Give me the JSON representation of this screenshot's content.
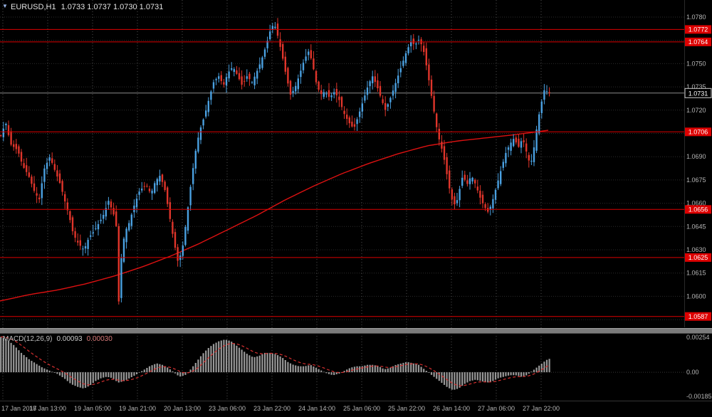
{
  "header": {
    "symbol_timeframe": "EURUSD,H1",
    "ohlc_quotes": "1.0733 1.0737 1.0730 1.0731"
  },
  "indicator": {
    "name": "MACD(12,26,9)",
    "value_main": "0.00093",
    "value_signal": "0.00030"
  },
  "colors": {
    "background": "#000000",
    "bull": "#4aa0e0",
    "bear": "#e0352b",
    "level_line": "#dd0000",
    "ma_line": "#dd1111",
    "bid_line": "#8a8a8a",
    "macd_hist": "#989898",
    "macd_signal": "#d83030",
    "axis_text": "#b6b6b6",
    "grid_v": "#4f4f4f",
    "grid_h": "#2c2c2c",
    "separator": "#7b7b7b"
  },
  "chart_data": {
    "type": "candlestick",
    "symbol": "EURUSD",
    "timeframe": "H1",
    "ohlc_display": {
      "open": "1.0733",
      "high": "1.0737",
      "low": "1.0730",
      "close": "1.0731"
    },
    "price_axis": {
      "view_range": [
        1.058,
        1.0791
      ],
      "grid_start": 1.0585,
      "grid_step": 0.0015,
      "tick_labels": [
        "1.0780",
        "1.0750",
        "1.0735",
        "1.0720",
        "1.0690",
        "1.0675",
        "1.0660",
        "1.0645",
        "1.0630",
        "1.0615",
        "1.0600"
      ],
      "current_price": "1.0731",
      "level_lines": [
        "1.0772",
        "1.0764",
        "1.0706",
        "1.0656",
        "1.0625",
        "1.0587"
      ]
    },
    "time_axis": {
      "labels": [
        "17 Jan 2017",
        "18 Jan 13:00",
        "19 Jan 05:00",
        "19 Jan 21:00",
        "20 Jan 13:00",
        "23 Jan 06:00",
        "23 Jan 22:00",
        "24 Jan 14:00",
        "25 Jan 06:00",
        "25 Jan 22:00",
        "26 Jan 14:00",
        "27 Jan 06:00",
        "27 Jan 22:00"
      ]
    },
    "price_path": [
      [
        0,
        1.0702
      ],
      [
        8,
        1.0712
      ],
      [
        15,
        1.0698
      ],
      [
        25,
        1.0694
      ],
      [
        32,
        1.0684
      ],
      [
        40,
        1.0678
      ],
      [
        48,
        1.0668
      ],
      [
        55,
        1.0662
      ],
      [
        62,
        1.0682
      ],
      [
        70,
        1.069
      ],
      [
        78,
        1.068
      ],
      [
        85,
        1.0672
      ],
      [
        90,
        1.0663
      ],
      [
        97,
        1.0652
      ],
      [
        103,
        1.064
      ],
      [
        110,
        1.0634
      ],
      [
        118,
        1.063
      ],
      [
        125,
        1.0638
      ],
      [
        132,
        1.0642
      ],
      [
        140,
        1.0648
      ],
      [
        147,
        1.0654
      ],
      [
        152,
        1.0662
      ],
      [
        158,
        1.0655
      ],
      [
        163,
        1.0648
      ],
      [
        167,
        1.0594
      ],
      [
        171,
        1.063
      ],
      [
        176,
        1.0642
      ],
      [
        182,
        1.0648
      ],
      [
        188,
        1.0658
      ],
      [
        196,
        1.0668
      ],
      [
        205,
        1.0672
      ],
      [
        212,
        1.0666
      ],
      [
        218,
        1.0674
      ],
      [
        225,
        1.0678
      ],
      [
        232,
        1.0668
      ],
      [
        238,
        1.0652
      ],
      [
        244,
        1.0636
      ],
      [
        250,
        1.0622
      ],
      [
        256,
        1.063
      ],
      [
        262,
        1.065
      ],
      [
        268,
        1.0672
      ],
      [
        274,
        1.0692
      ],
      [
        280,
        1.0706
      ],
      [
        287,
        1.0716
      ],
      [
        294,
        1.0728
      ],
      [
        300,
        1.0738
      ],
      [
        307,
        1.0742
      ],
      [
        314,
        1.0736
      ],
      [
        320,
        1.0744
      ],
      [
        327,
        1.0748
      ],
      [
        334,
        1.0742
      ],
      [
        340,
        1.0736
      ],
      [
        347,
        1.0742
      ],
      [
        354,
        1.0738
      ],
      [
        360,
        1.0744
      ],
      [
        367,
        1.0752
      ],
      [
        374,
        1.0762
      ],
      [
        380,
        1.0772
      ],
      [
        385,
        1.0776
      ],
      [
        390,
        1.0768
      ],
      [
        396,
        1.0756
      ],
      [
        402,
        1.0742
      ],
      [
        408,
        1.073
      ],
      [
        414,
        1.0734
      ],
      [
        420,
        1.0742
      ],
      [
        427,
        1.0752
      ],
      [
        433,
        1.0758
      ],
      [
        438,
        1.0752
      ],
      [
        444,
        1.0738
      ],
      [
        450,
        1.073
      ],
      [
        456,
        1.0732
      ],
      [
        463,
        1.0728
      ],
      [
        470,
        1.0732
      ],
      [
        477,
        1.0726
      ],
      [
        483,
        1.0718
      ],
      [
        490,
        1.0712
      ],
      [
        497,
        1.0708
      ],
      [
        503,
        1.0716
      ],
      [
        510,
        1.0726
      ],
      [
        517,
        1.0736
      ],
      [
        523,
        1.0742
      ],
      [
        529,
        1.0736
      ],
      [
        535,
        1.0728
      ],
      [
        541,
        1.072
      ],
      [
        547,
        1.0726
      ],
      [
        553,
        1.0734
      ],
      [
        559,
        1.0742
      ],
      [
        565,
        1.075
      ],
      [
        571,
        1.0758
      ],
      [
        577,
        1.0764
      ],
      [
        583,
        1.0762
      ],
      [
        589,
        1.0766
      ],
      [
        595,
        1.0758
      ],
      [
        600,
        1.0746
      ],
      [
        605,
        1.0732
      ],
      [
        610,
        1.0718
      ],
      [
        615,
        1.0704
      ],
      [
        620,
        1.0696
      ],
      [
        625,
        1.0686
      ],
      [
        630,
        1.0672
      ],
      [
        635,
        1.0662
      ],
      [
        640,
        1.0658
      ],
      [
        645,
        1.0668
      ],
      [
        650,
        1.0678
      ],
      [
        656,
        1.0672
      ],
      [
        662,
        1.0678
      ],
      [
        668,
        1.0672
      ],
      [
        674,
        1.0664
      ],
      [
        680,
        1.0658
      ],
      [
        686,
        1.0654
      ],
      [
        692,
        1.0662
      ],
      [
        698,
        1.0672
      ],
      [
        704,
        1.0682
      ],
      [
        710,
        1.0692
      ],
      [
        716,
        1.0698
      ],
      [
        722,
        1.0702
      ],
      [
        728,
        1.0696
      ],
      [
        734,
        1.0702
      ],
      [
        740,
        1.0692
      ],
      [
        745,
        1.0684
      ],
      [
        750,
        1.0696
      ],
      [
        755,
        1.0712
      ],
      [
        760,
        1.0724
      ],
      [
        765,
        1.0734
      ],
      [
        770,
        1.0731
      ]
    ],
    "ma_line": [
      [
        0,
        1.0597
      ],
      [
        40,
        1.0601
      ],
      [
        80,
        1.0604
      ],
      [
        120,
        1.0608
      ],
      [
        160,
        1.0613
      ],
      [
        200,
        1.0619
      ],
      [
        240,
        1.0626
      ],
      [
        280,
        1.0634
      ],
      [
        320,
        1.0643
      ],
      [
        360,
        1.0652
      ],
      [
        400,
        1.0662
      ],
      [
        440,
        1.0671
      ],
      [
        480,
        1.0679
      ],
      [
        520,
        1.0686
      ],
      [
        560,
        1.0692
      ],
      [
        600,
        1.0697
      ],
      [
        640,
        1.07
      ],
      [
        680,
        1.0702
      ],
      [
        720,
        1.0704
      ],
      [
        770,
        1.0707
      ]
    ],
    "macd": {
      "params": "12,26,9",
      "main_value": "0.00093",
      "signal_value": "0.00030",
      "view_range": [
        -0.00186,
        0.00254
      ],
      "axis_labels": [
        "0.00254",
        "0.00",
        "-0.00185"
      ],
      "histogram": [
        [
          0,
          0.0024
        ],
        [
          10,
          0.0022
        ],
        [
          20,
          0.0018
        ],
        [
          30,
          0.0013
        ],
        [
          40,
          0.0009
        ],
        [
          50,
          0.0006
        ],
        [
          60,
          0.0003
        ],
        [
          70,
          0.0001
        ],
        [
          80,
          -0.0001
        ],
        [
          90,
          -0.0004
        ],
        [
          100,
          -0.0008
        ],
        [
          110,
          -0.001
        ],
        [
          118,
          -0.0011
        ],
        [
          126,
          -0.0009
        ],
        [
          134,
          -0.0006
        ],
        [
          142,
          -0.0004
        ],
        [
          150,
          -0.0003
        ],
        [
          158,
          -0.0004
        ],
        [
          166,
          -0.0007
        ],
        [
          174,
          -0.0006
        ],
        [
          182,
          -0.0004
        ],
        [
          190,
          -0.0002
        ],
        [
          200,
          0.0001
        ],
        [
          210,
          0.0004
        ],
        [
          220,
          0.0006
        ],
        [
          228,
          0.0005
        ],
        [
          236,
          0.0003
        ],
        [
          244,
          0
        ],
        [
          252,
          -0.0003
        ],
        [
          260,
          -0.0002
        ],
        [
          268,
          0.0002
        ],
        [
          276,
          0.0007
        ],
        [
          284,
          0.0012
        ],
        [
          292,
          0.0016
        ],
        [
          300,
          0.0019
        ],
        [
          308,
          0.0021
        ],
        [
          316,
          0.0022
        ],
        [
          324,
          0.0021
        ],
        [
          332,
          0.0018
        ],
        [
          340,
          0.0015
        ],
        [
          348,
          0.0012
        ],
        [
          356,
          0.001
        ],
        [
          364,
          0.0011
        ],
        [
          372,
          0.0013
        ],
        [
          380,
          0.0013
        ],
        [
          388,
          0.0012
        ],
        [
          396,
          0.001
        ],
        [
          404,
          0.0007
        ],
        [
          412,
          0.0005
        ],
        [
          420,
          0.0004
        ],
        [
          428,
          0.0004
        ],
        [
          436,
          0.0005
        ],
        [
          444,
          0.0003
        ],
        [
          452,
          0.0001
        ],
        [
          460,
          -0.0001
        ],
        [
          468,
          -0.0002
        ],
        [
          476,
          -0.0001
        ],
        [
          484,
          0.0001
        ],
        [
          492,
          0.0003
        ],
        [
          500,
          0.0004
        ],
        [
          508,
          0.0004
        ],
        [
          516,
          0.0005
        ],
        [
          524,
          0.0005
        ],
        [
          532,
          0.0004
        ],
        [
          540,
          0.0002
        ],
        [
          548,
          0.0003
        ],
        [
          556,
          0.0005
        ],
        [
          564,
          0.0006
        ],
        [
          572,
          0.0007
        ],
        [
          580,
          0.0006
        ],
        [
          588,
          0.0005
        ],
        [
          596,
          0.0002
        ],
        [
          604,
          -0.0001
        ],
        [
          612,
          -0.0004
        ],
        [
          620,
          -0.0007
        ],
        [
          628,
          -0.001
        ],
        [
          636,
          -0.0012
        ],
        [
          644,
          -0.0011
        ],
        [
          652,
          -0.0008
        ],
        [
          660,
          -0.0006
        ],
        [
          668,
          -0.0005
        ],
        [
          676,
          -0.0006
        ],
        [
          684,
          -0.0007
        ],
        [
          692,
          -0.0006
        ],
        [
          700,
          -0.0004
        ],
        [
          708,
          -0.0003
        ],
        [
          716,
          -0.0002
        ],
        [
          724,
          -0.0002
        ],
        [
          732,
          -0.0003
        ],
        [
          740,
          -0.0002
        ],
        [
          748,
          0.0001
        ],
        [
          756,
          0.0004
        ],
        [
          764,
          0.0007
        ],
        [
          770,
          0.0009
        ]
      ]
    }
  }
}
